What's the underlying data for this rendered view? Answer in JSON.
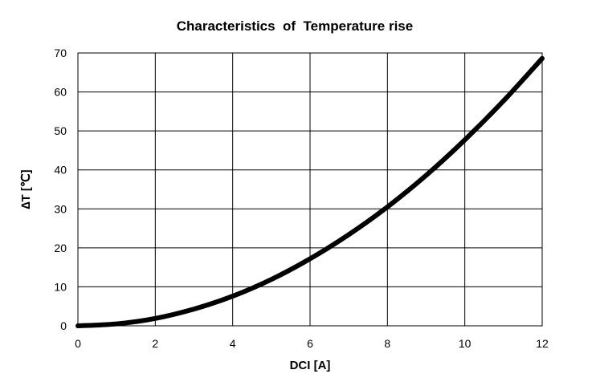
{
  "chart_data": {
    "type": "line",
    "title": "Characteristics  of  Temperature rise",
    "xlabel": "DCI [A]",
    "ylabel": "∆T [℃]",
    "xlim": [
      0,
      12
    ],
    "ylim": [
      0,
      70
    ],
    "x_ticks": [
      0,
      2,
      4,
      6,
      8,
      10,
      12
    ],
    "y_ticks": [
      0,
      10,
      20,
      30,
      40,
      50,
      60,
      70
    ],
    "x_tick_labels": [
      "0",
      "2",
      "4",
      "6",
      "8",
      "10",
      "12"
    ],
    "y_tick_labels": [
      "0",
      "10",
      "20",
      "30",
      "40",
      "50",
      "60",
      "70"
    ],
    "grid": true,
    "legend": "none",
    "series": [
      {
        "x": [
          0,
          1,
          2,
          3,
          4,
          5,
          6,
          7,
          8,
          9,
          10,
          11,
          12
        ],
        "values": [
          0,
          0.5,
          1.9,
          4.3,
          7.6,
          11.9,
          17.2,
          23.4,
          30.5,
          38.6,
          47.7,
          57.7,
          68.6
        ],
        "color": "#000000"
      }
    ]
  }
}
